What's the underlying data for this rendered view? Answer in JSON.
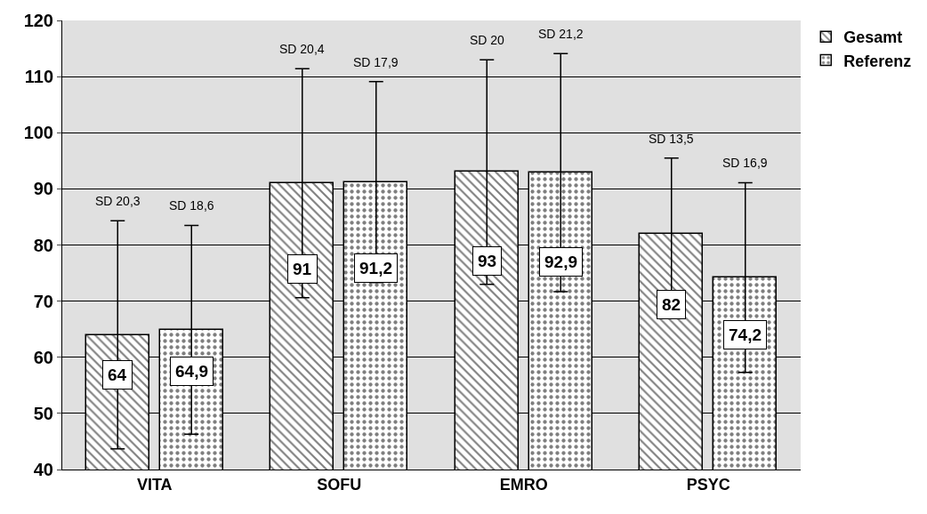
{
  "chart_data": {
    "type": "bar",
    "categories": [
      "VITA",
      "SOFU",
      "EMRO",
      "PSYC"
    ],
    "series": [
      {
        "name": "Gesamt",
        "color": "#000000",
        "values": [
          64,
          91,
          93,
          82
        ],
        "errors": [
          20.3,
          20.4,
          20,
          13.5
        ],
        "value_labels": [
          "64",
          "91",
          "93",
          "82"
        ]
      },
      {
        "name": "Referenz",
        "color": "#000000",
        "values": [
          64.9,
          91.2,
          92.9,
          74.2
        ],
        "errors": [
          18.6,
          17.9,
          21.2,
          16.9
        ],
        "value_labels": [
          "64,9",
          "91,2",
          "92,9",
          "74,2"
        ]
      }
    ],
    "annotations": [
      "SD 20,3",
      "SD 18,6",
      "SD 20,4",
      "SD 17,9",
      "SD 20",
      "SD 21,2",
      "SD 13,5",
      "SD 16,9"
    ],
    "ylim": [
      40,
      120
    ],
    "yticks": [
      40,
      50,
      60,
      70,
      80,
      90,
      100,
      110,
      120
    ],
    "grid": "y",
    "legend": "top right"
  }
}
